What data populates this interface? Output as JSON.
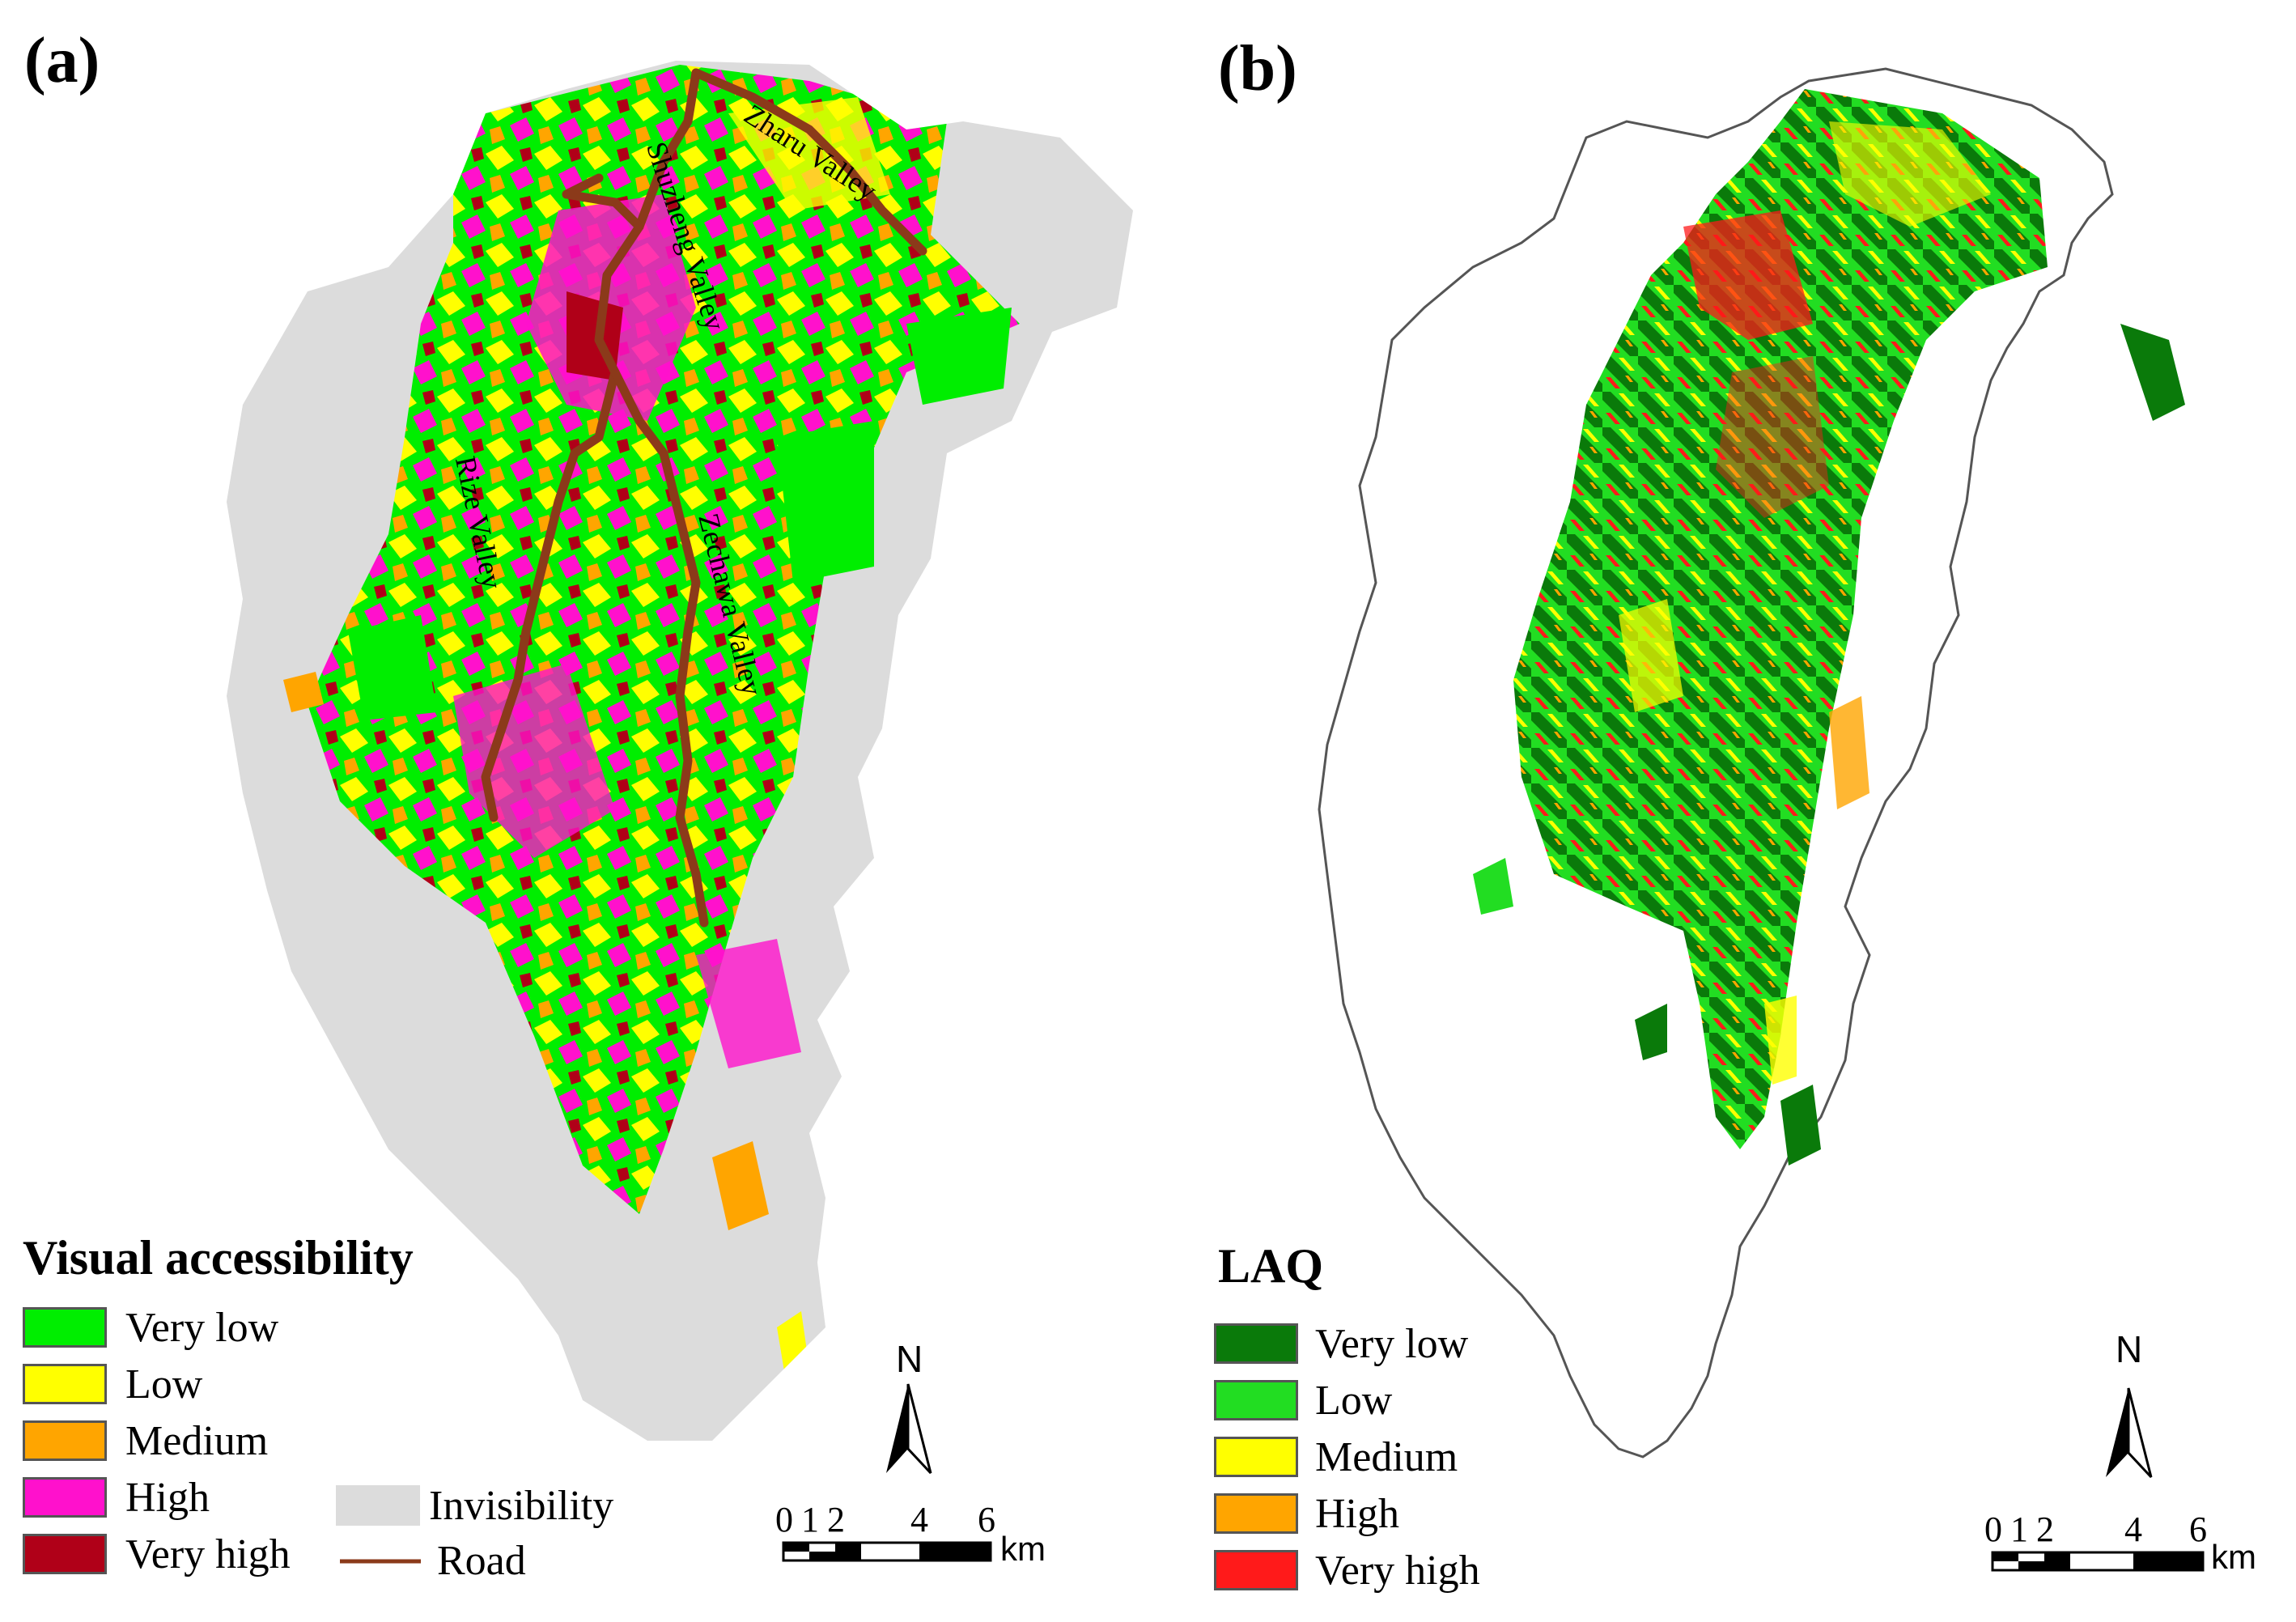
{
  "panels": [
    {
      "id": "a",
      "label": "(a)",
      "legend": {
        "title": "Visual accessibility",
        "items": [
          {
            "label": "Very low",
            "color": "#00ee00"
          },
          {
            "label": "Low",
            "color": "#ffff00"
          },
          {
            "label": "Medium",
            "color": "#ffa500"
          },
          {
            "label": "High",
            "color": "#ff11cc"
          },
          {
            "label": "Very high",
            "color": "#b00018"
          }
        ],
        "extra_items": [
          {
            "label": "Invisibility",
            "color": "#dcdcdc",
            "kind": "swatch"
          },
          {
            "label": "Road",
            "color": "#8b3a1a",
            "kind": "line"
          }
        ]
      },
      "valley_labels": [
        "Zharu Valley",
        "Shuzheng Valley",
        "Rize Valley",
        "Zechawa Valley"
      ],
      "north": "N",
      "scale": {
        "ticks": [
          "0",
          "1",
          "2",
          "4",
          "6"
        ],
        "unit": "km"
      }
    },
    {
      "id": "b",
      "label": "(b)",
      "legend": {
        "title": "LAQ",
        "items": [
          {
            "label": "Very low",
            "color": "#0a7a0a"
          },
          {
            "label": "Low",
            "color": "#22dd22"
          },
          {
            "label": "Medium",
            "color": "#ffff00"
          },
          {
            "label": "High",
            "color": "#ffa500"
          },
          {
            "label": "Very high",
            "color": "#ff1a1a"
          }
        ]
      },
      "north": "N",
      "scale": {
        "ticks": [
          "0",
          "1",
          "2",
          "4",
          "6"
        ],
        "unit": "km"
      }
    }
  ]
}
